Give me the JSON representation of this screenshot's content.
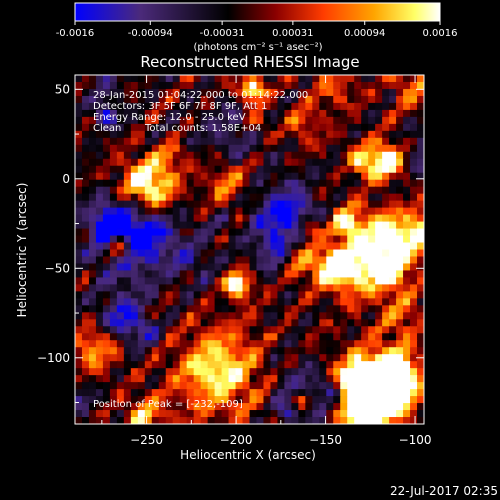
{
  "chart_data": {
    "type": "heatmap",
    "title": "Reconstructed RHESSI Image",
    "xlabel": "Heliocentric X (arcsec)",
    "ylabel": "Heliocentric Y (arcsec)",
    "xlim": [
      -290,
      -95
    ],
    "ylim": [
      -137,
      58
    ],
    "x_ticks": [
      -250,
      -200,
      -150,
      -100
    ],
    "y_ticks": [
      50,
      0,
      -50,
      -100
    ],
    "colorbar": {
      "range": [
        -0.0016,
        0.0016
      ],
      "ticks": [
        -0.0016,
        -0.00094,
        -0.00031,
        0.00031,
        0.00094,
        0.0016
      ],
      "tick_labels": [
        "-0.0016",
        "-0.00094",
        "-0.00031",
        "0.00031",
        "0.00094",
        "0.0016"
      ],
      "units_label": "(photons cm⁻² s⁻¹ asec⁻²)",
      "colors": [
        "#0000ff",
        "#4b2a7a",
        "#000000",
        "#8b0000",
        "#ff4500",
        "#ffa500",
        "#ffff66",
        "#ffffff"
      ]
    },
    "annotations": {
      "time_range": "28-Jan-2015 01:04:22.000 to 01:14:22.000",
      "detectors": "Detectors: 3F 5F 6F 7F 8F 9F, Att 1",
      "energy": "Energy Range: 12.0 - 25.0 keV",
      "clean": "Clean",
      "total_counts": "Total counts: 1.58E+04",
      "peak": "Position of Peak = [-232,-109]"
    },
    "peak_position": [
      -232,
      -109
    ],
    "footer_date": "22-Jul-2017 02:35"
  }
}
